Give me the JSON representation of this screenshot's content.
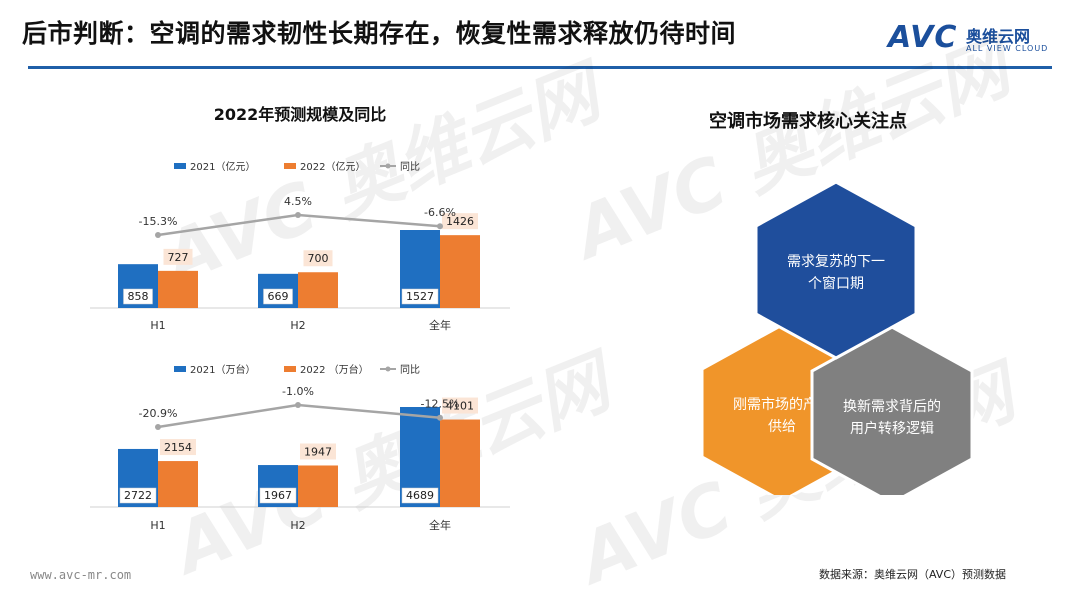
{
  "header": {
    "title": "后市判断：空调的需求韧性长期存在，恢复性需求释放仍待时间",
    "logo_text": "AVC",
    "logo_cn": "奥维云网",
    "logo_en": "ALL VIEW CLOUD"
  },
  "colors": {
    "accent": "#1f5fa8",
    "series_2021": "#1f6fc1",
    "series_2022": "#ed7d31",
    "yoy_line": "#a5a5a5",
    "hex_top": "#1f4e9c",
    "hex_left": "#f0952a",
    "hex_right": "#808080"
  },
  "chart_data": [
    {
      "type": "bar",
      "title": "2022年预测规模及同比",
      "categories": [
        "H1",
        "H2",
        "全年"
      ],
      "series": [
        {
          "name": "2021（亿元）",
          "values": [
            858,
            669,
            1527
          ]
        },
        {
          "name": "2022（亿元）",
          "values": [
            727,
            700,
            1426
          ]
        }
      ],
      "line_series": {
        "name": "同比",
        "values": [
          -15.3,
          4.5,
          -6.6
        ],
        "labels": [
          "-15.3%",
          "4.5%",
          "-6.6%"
        ]
      },
      "legend": "top"
    },
    {
      "type": "bar",
      "title": "",
      "categories": [
        "H1",
        "H2",
        "全年"
      ],
      "series": [
        {
          "name": "2021（万台）",
          "values": [
            2722,
            1967,
            4689
          ]
        },
        {
          "name": "2022 （万台）",
          "values": [
            2154,
            1947,
            4101
          ]
        }
      ],
      "line_series": {
        "name": "同比",
        "values": [
          -20.9,
          -1.0,
          -12.5
        ],
        "labels": [
          "-20.9%",
          "-1.0%",
          "-12.5%"
        ]
      },
      "legend": "top"
    }
  ],
  "hexagons": {
    "title": "空调市场需求核心关注点",
    "top": [
      "需求复苏的下一",
      "个窗口期"
    ],
    "left": [
      "刚需市场的产品",
      "供给"
    ],
    "right": [
      "换新需求背后的",
      "用户转移逻辑"
    ]
  },
  "footer": {
    "url": "www.avc-mr.com",
    "source": "数据来源：奥维云网（AVC）预测数据"
  }
}
